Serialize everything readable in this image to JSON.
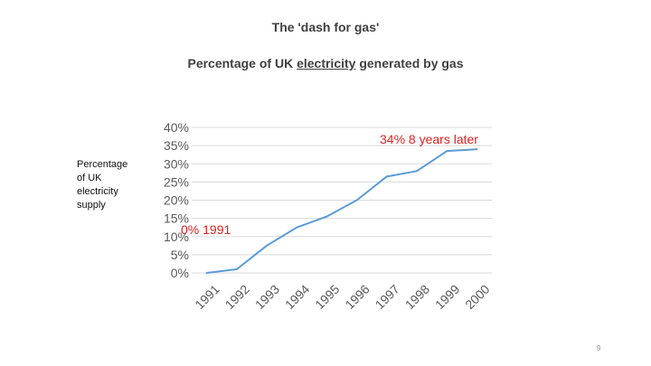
{
  "slide": {
    "title": "The 'dash for gas'",
    "subtitle_prefix": "Percentage of UK ",
    "subtitle_underlined": "electricity",
    "subtitle_suffix": " generated by gas",
    "y_caption_lines": [
      "Percentage",
      "of UK",
      "electricity",
      "supply"
    ],
    "page_number": "9"
  },
  "chart_data": {
    "type": "line",
    "title": "",
    "xlabel": "",
    "ylabel": "Percentage of UK electricity supply",
    "x": [
      "1991",
      "1992",
      "1993",
      "1994",
      "1995",
      "1996",
      "1997",
      "1998",
      "1999",
      "2000"
    ],
    "series": [
      {
        "values": [
          0,
          1,
          7.5,
          12.5,
          15.5,
          20,
          26.5,
          28,
          33.5,
          34
        ]
      }
    ],
    "ylim": [
      0,
      40
    ],
    "yticks": [
      "0%",
      "5%",
      "10%",
      "15%",
      "20%",
      "25%",
      "30%",
      "35%",
      "40%"
    ],
    "grid": true,
    "annotations": [
      {
        "text": "0% 1991",
        "color": "#e02020"
      },
      {
        "text": "34% 8 years later",
        "color": "#e02020"
      }
    ],
    "colors": {
      "line": "#5b9bd5",
      "grid": "#d9d9d9",
      "axis_text": "#595959"
    }
  }
}
